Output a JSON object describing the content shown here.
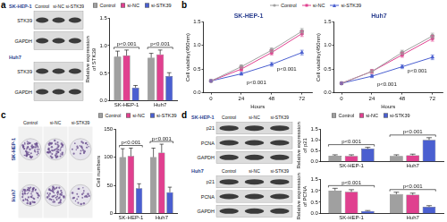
{
  "panel_labels": [
    "a",
    "b",
    "c",
    "d"
  ],
  "blots": [
    {
      "groups": [
        {
          "name": "SK-HEP-1",
          "lanes": [
            "Control",
            "si-NC",
            "si-STK39"
          ],
          "rows": [
            "STK39",
            "GAPDH"
          ]
        },
        {
          "name": "Huh7",
          "rows": [
            "STK39",
            "GAPDH"
          ]
        }
      ]
    },
    {
      "groups": [
        {
          "name": "SK-HEP-1",
          "lanes": [
            "Control",
            "si-NC",
            "si-STK39"
          ],
          "rows": [
            "p21",
            "PCNA",
            "GAPDH"
          ]
        },
        {
          "name": "Huh7",
          "lanes": [
            "Control",
            "si-NC",
            "si-STK39"
          ],
          "rows": [
            "p21",
            "PCNA",
            "GAPDH"
          ]
        }
      ]
    }
  ],
  "colony": {
    "columns": [
      "Control",
      "si-NC",
      "si-STK39"
    ],
    "rows": [
      "SK-HEP-1",
      "Huh7"
    ]
  },
  "chart_data": [
    {
      "type": "bar",
      "y_label": "Relative expression of STK39",
      "categories": [
        "SK-HEP-1",
        "Huh7"
      ],
      "series": [
        {
          "name": "Control",
          "color": "#a0a0a0",
          "values": [
            0.8,
            0.78
          ],
          "errors": [
            0.1,
            0.08
          ]
        },
        {
          "name": "si-NC",
          "color": "#e0408f",
          "values": [
            0.82,
            0.84
          ],
          "errors": [
            0.1,
            0.08
          ]
        },
        {
          "name": "si-STK39",
          "color": "#4a5fd0",
          "values": [
            0.24,
            0.45
          ],
          "errors": [
            0.04,
            0.06
          ]
        }
      ],
      "ylim": [
        0,
        1.5
      ],
      "yticks": [
        {
          "value": 0,
          "label": "0.0"
        },
        0.5,
        {
          "value": 1,
          "label": "1.0"
        },
        1.5
      ],
      "legend": "top",
      "annotations": [
        {
          "text": "p<0.001",
          "category": "SK-HEP-1"
        },
        {
          "text": "p<0.001",
          "category": "Huh7"
        }
      ]
    },
    {
      "type": "line",
      "title": "SK-HEP-1",
      "x_label": "Hours",
      "y_label": "Cell viability(450nm)",
      "x": [
        0,
        24,
        48,
        72
      ],
      "xlim": [
        -6,
        80
      ],
      "xticks": [
        0,
        24,
        48,
        72
      ],
      "ylim": [
        0,
        1.5
      ],
      "yticks": [
        {
          "value": 0,
          "label": "0.0"
        },
        0.5,
        {
          "value": 1,
          "label": "1.0"
        },
        1.5
      ],
      "legend": "top",
      "series": [
        {
          "name": "Control",
          "color": "#a0a0a0",
          "marker": "circle",
          "values": [
            0.25,
            0.55,
            0.9,
            1.3
          ],
          "errors": [
            0.02,
            0.04,
            0.05,
            0.06
          ]
        },
        {
          "name": "si-NC",
          "color": "#e0408f",
          "marker": "square",
          "values": [
            0.25,
            0.5,
            0.85,
            1.25
          ],
          "errors": [
            0.02,
            0.04,
            0.05,
            0.06
          ]
        },
        {
          "name": "si-STK39",
          "color": "#4a5fd0",
          "marker": "triangle",
          "values": [
            0.25,
            0.4,
            0.6,
            0.85
          ],
          "errors": [
            0.02,
            0.03,
            0.04,
            0.05
          ]
        }
      ],
      "annotations": [
        {
          "text": "p<0.001",
          "x": 60,
          "y": 0.5
        },
        {
          "text": "p<0.001",
          "x": 36,
          "y": 0.22
        }
      ]
    },
    {
      "type": "line",
      "title": "Huh7",
      "x_label": "Hours",
      "y_label": "Cell viability(450nm)",
      "x": [
        0,
        24,
        48,
        72
      ],
      "xlim": [
        -6,
        80
      ],
      "xticks": [
        0,
        24,
        48,
        72
      ],
      "ylim": [
        0,
        1.5
      ],
      "yticks": [
        {
          "value": 0,
          "label": "0.0"
        },
        0.5,
        {
          "value": 1,
          "label": "1.0"
        },
        1.5
      ],
      "series": [
        {
          "name": "Control",
          "color": "#a0a0a0",
          "marker": "circle",
          "values": [
            0.2,
            0.45,
            0.85,
            1.2
          ],
          "errors": [
            0.02,
            0.04,
            0.05,
            0.06
          ]
        },
        {
          "name": "si-NC",
          "color": "#e0408f",
          "marker": "square",
          "values": [
            0.2,
            0.45,
            0.8,
            1.15
          ],
          "errors": [
            0.02,
            0.04,
            0.05,
            0.06
          ]
        },
        {
          "name": "si-STK39",
          "color": "#4a5fd0",
          "marker": "triangle",
          "values": [
            0.2,
            0.35,
            0.55,
            0.75
          ],
          "errors": [
            0.02,
            0.03,
            0.04,
            0.05
          ]
        }
      ],
      "annotations": [
        {
          "text": "p<0.001",
          "x": 60,
          "y": 0.45
        },
        {
          "text": "p<0.001",
          "x": 36,
          "y": 0.18
        }
      ]
    },
    {
      "type": "bar",
      "y_label": "Cell numbers",
      "categories": [
        "SK-HEP-1",
        "Huh7"
      ],
      "series": [
        {
          "name": "Control",
          "color": "#a0a0a0",
          "values": [
            100,
            100
          ],
          "errors": [
            15,
            16
          ]
        },
        {
          "name": "si-NC",
          "color": "#e0408f",
          "values": [
            102,
            108
          ],
          "errors": [
            14,
            15
          ]
        },
        {
          "name": "si-STK39",
          "color": "#4a5fd0",
          "values": [
            45,
            38
          ],
          "errors": [
            8,
            9
          ]
        }
      ],
      "ylim": [
        0,
        150
      ],
      "yticks": [
        0,
        50,
        100,
        150
      ],
      "legend": "top",
      "annotations": [
        {
          "text": "p<0.001",
          "category": "SK-HEP-1"
        },
        {
          "text": "p<0.001",
          "category": "Huh7"
        }
      ]
    },
    {
      "type": "bar",
      "y_label": "Relative expression of p21",
      "categories": [
        "SK-HEP-1",
        "Huh7"
      ],
      "series": [
        {
          "name": "Control",
          "color": "#a0a0a0",
          "values": [
            0.28,
            0.27
          ],
          "errors": [
            0.04,
            0.05
          ]
        },
        {
          "name": "si-NC",
          "color": "#e0408f",
          "values": [
            0.27,
            0.3
          ],
          "errors": [
            0.05,
            0.05
          ]
        },
        {
          "name": "si-STK39",
          "color": "#4a5fd0",
          "values": [
            0.6,
            1.0
          ],
          "errors": [
            0.06,
            0.1
          ]
        }
      ],
      "ylim": [
        0,
        1.5
      ],
      "yticks": [
        {
          "value": 0,
          "label": "0.0"
        },
        0.5,
        {
          "value": 1,
          "label": "1.0"
        },
        1.5
      ],
      "legend": "top",
      "annotations": [
        {
          "text": "p<0.001",
          "category": "SK-HEP-1"
        },
        {
          "text": "p<0.001",
          "category": "Huh7"
        }
      ]
    },
    {
      "type": "bar",
      "y_label": "Relative expression of PCNA",
      "categories": [
        "SK-HEP-1",
        "Huh7"
      ],
      "series": [
        {
          "name": "Control",
          "color": "#a0a0a0",
          "values": [
            1.0,
            0.85
          ],
          "errors": [
            0.1,
            0.08
          ]
        },
        {
          "name": "si-NC",
          "color": "#e0408f",
          "values": [
            0.95,
            0.82
          ],
          "errors": [
            0.09,
            0.07
          ]
        },
        {
          "name": "si-STK39",
          "color": "#4a5fd0",
          "values": [
            0.12,
            0.3
          ],
          "errors": [
            0.02,
            0.05
          ]
        }
      ],
      "ylim": [
        0,
        1.5
      ],
      "yticks": [
        {
          "value": 0,
          "label": "0.0"
        },
        0.5,
        {
          "value": 1,
          "label": "1.0"
        },
        1.5
      ],
      "annotations": [
        {
          "text": "p<0.001",
          "category": "SK-HEP-1"
        },
        {
          "text": "p<0.001",
          "category": "Huh7"
        }
      ]
    }
  ]
}
